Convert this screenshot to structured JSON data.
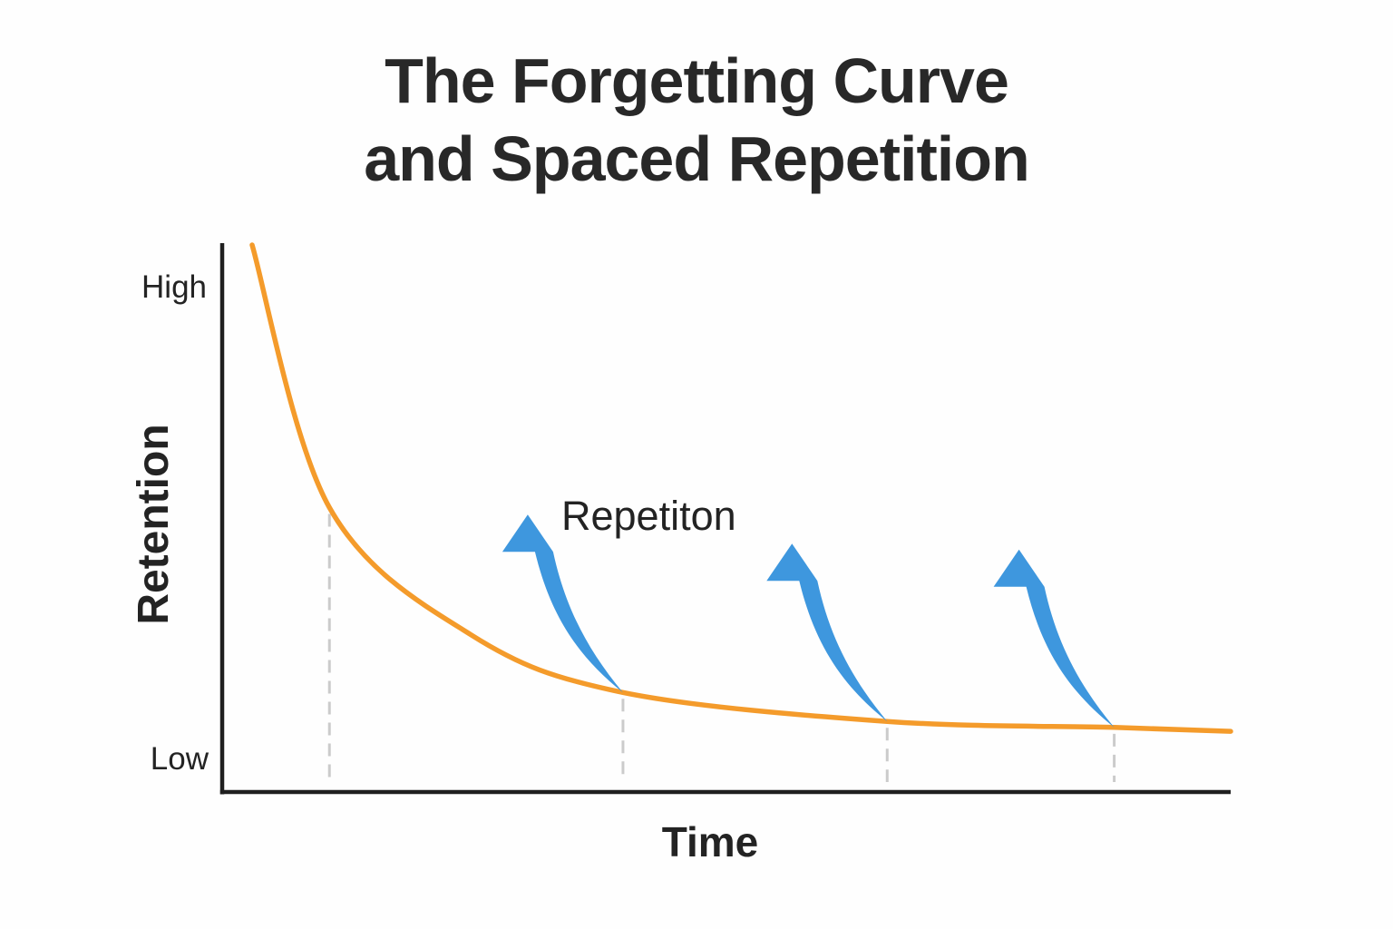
{
  "title": {
    "line1": "The Forgetting Curve",
    "line2": "and Spaced Repetition"
  },
  "labels": {
    "y_high": "High",
    "y_low": "Low",
    "y_axis": "Retention",
    "x_axis": "Time",
    "annotation": "Repetiton"
  },
  "chart_data": {
    "type": "line",
    "title": "The Forgetting Curve and Spaced Repetition",
    "xlabel": "Time",
    "ylabel": "Retention",
    "y_tick_labels": [
      "High",
      "Low"
    ],
    "x_range_norm": [
      0,
      1
    ],
    "y_range_norm": [
      0,
      1
    ],
    "grid": "dashed vertical lines at repetition times only",
    "legend_position": "none",
    "annotation_label": "Repetiton",
    "axis_color": "#1f1f1f",
    "gridline_color": "#cbcbcb",
    "curve": {
      "name": "forgetting-curve",
      "color": "#f49b2b",
      "x": [
        0,
        0.079,
        0.224,
        0.379,
        0.649,
        0.881,
        1.0
      ],
      "retention": [
        1.0,
        0.52,
        0.287,
        0.182,
        0.129,
        0.118,
        0.111
      ]
    },
    "repetitions": {
      "arrow_color": "#3e97de",
      "events": [
        {
          "x": 0.079,
          "retention": 0.52,
          "arrow": false
        },
        {
          "x": 0.379,
          "retention": 0.182,
          "arrow": true
        },
        {
          "x": 0.649,
          "retention": 0.129,
          "arrow": true
        },
        {
          "x": 0.881,
          "retention": 0.118,
          "arrow": true
        }
      ]
    }
  }
}
